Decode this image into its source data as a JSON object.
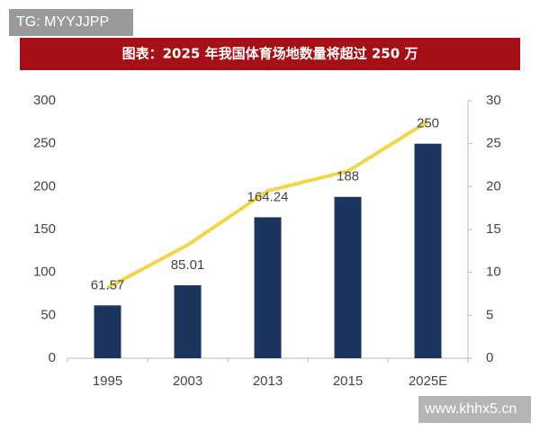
{
  "watermarks": [
    "TG: MYYJJPP",
    "www.khhx5.cn"
  ],
  "chart_data": {
    "type": "bar-line",
    "title": "图表：2025 年我国体育场地数量将超过 250 万",
    "categories": [
      "1995",
      "2003",
      "2013",
      "2015",
      "2025E"
    ],
    "series": [
      {
        "type": "bar",
        "color": "#1c355e",
        "values": [
          61.57,
          85.01,
          164.24,
          188,
          250
        ],
        "data_labels": true
      },
      {
        "type": "line",
        "axis": "y2",
        "color": "#f3d54a",
        "values": [
          8.2,
          13.2,
          19.5,
          21.8,
          27.6
        ]
      }
    ],
    "ylim": [
      0,
      300
    ],
    "yticks": [
      0,
      50,
      100,
      150,
      200,
      250,
      300
    ],
    "y2lim": [
      0,
      30
    ],
    "y2ticks": [
      0,
      5,
      10,
      15,
      20,
      25,
      30
    ],
    "grid": false
  }
}
